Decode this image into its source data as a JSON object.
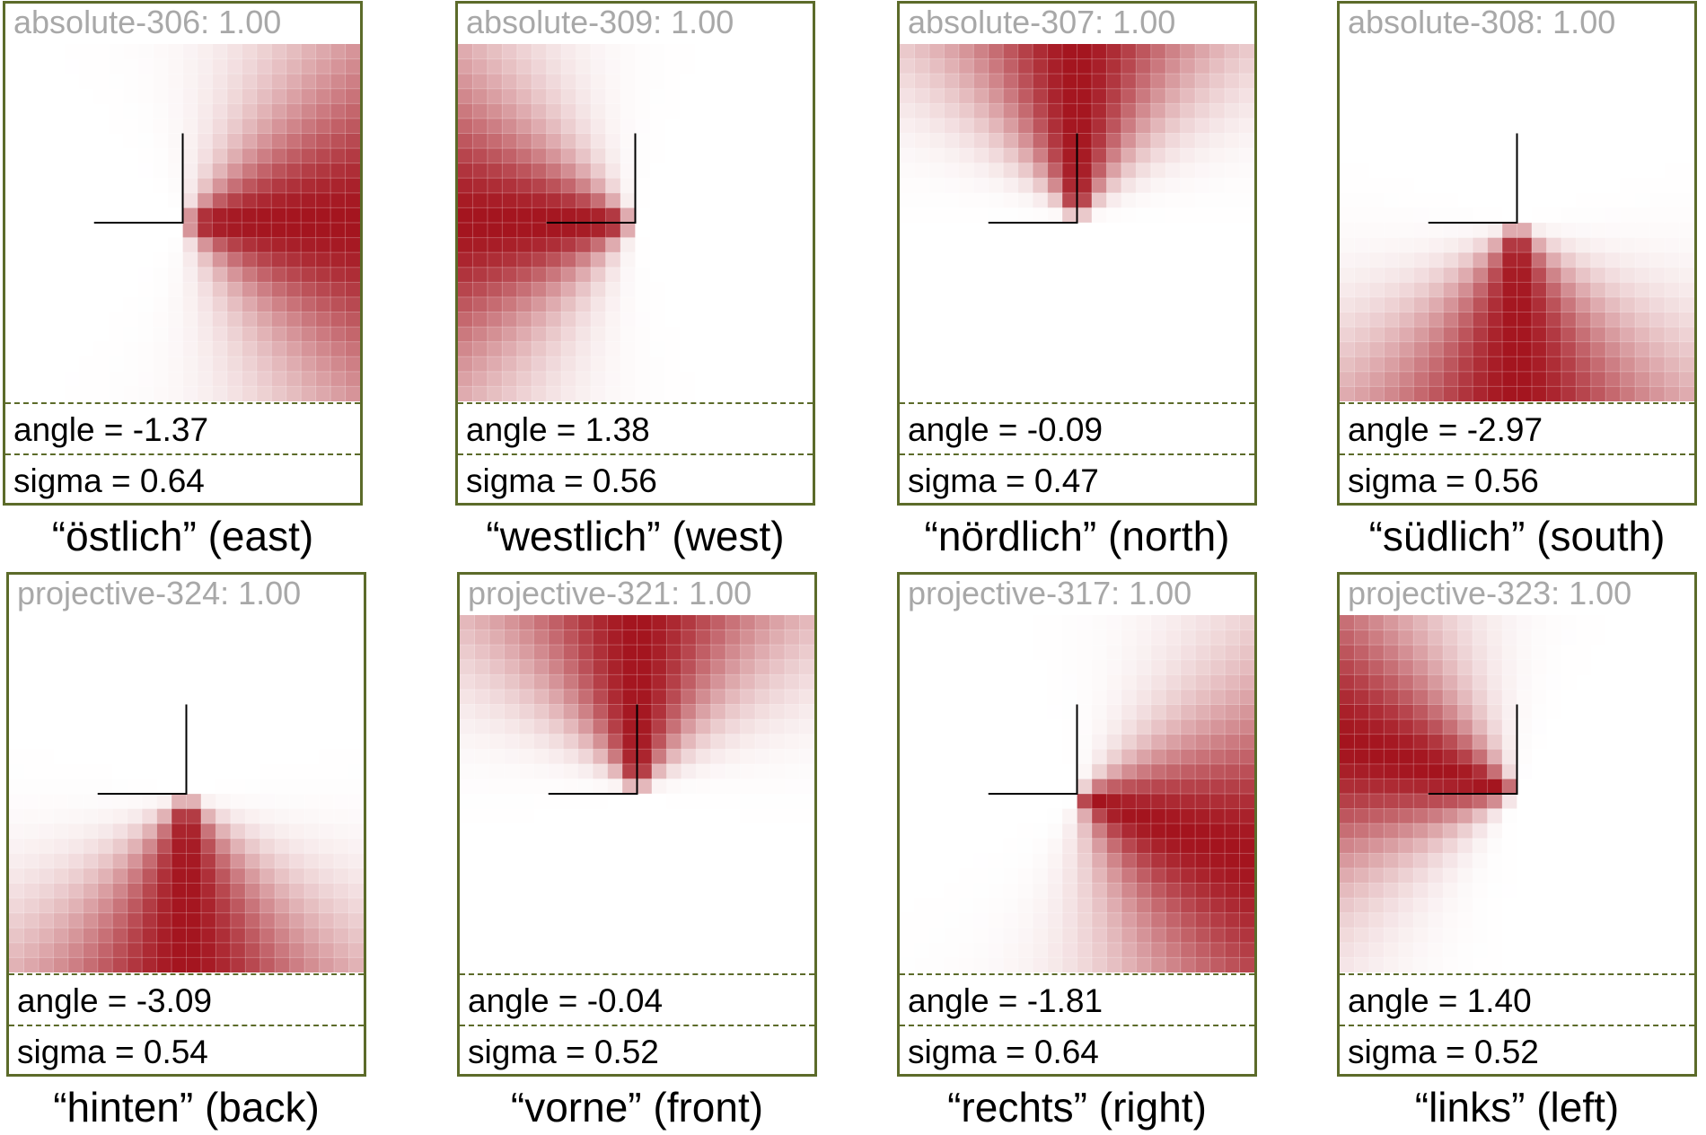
{
  "panels": [
    {
      "title": "absolute-306: 1.00",
      "angle_text": "angle = -1.37",
      "sigma_text": "sigma = 0.64",
      "caption": "“östlich” (east)",
      "angle": -1.37,
      "sigma": 0.64,
      "peak_direction": "right"
    },
    {
      "title": "absolute-309: 1.00",
      "angle_text": "angle = 1.38",
      "sigma_text": "sigma = 0.56",
      "caption": "“westlich” (west)",
      "angle": 1.38,
      "sigma": 0.56,
      "peak_direction": "left"
    },
    {
      "title": "absolute-307: 1.00",
      "angle_text": "angle = -0.09",
      "sigma_text": "sigma = 0.47",
      "caption": "“nördlich” (north)",
      "angle": -0.09,
      "sigma": 0.47,
      "peak_direction": "up"
    },
    {
      "title": "absolute-308: 1.00",
      "angle_text": "angle = -2.97",
      "sigma_text": "sigma = 0.56",
      "caption": "“südlich” (south)",
      "angle": -2.97,
      "sigma": 0.56,
      "peak_direction": "down"
    },
    {
      "title": "projective-324: 1.00",
      "angle_text": "angle = -3.09",
      "sigma_text": "sigma = 0.54",
      "caption": "“hinten” (back)",
      "angle": -3.09,
      "sigma": 0.54,
      "peak_direction": "down"
    },
    {
      "title": "projective-321: 1.00",
      "angle_text": "angle = -0.04",
      "sigma_text": "sigma = 0.52",
      "caption": "“vorne” (front)",
      "angle": -0.04,
      "sigma": 0.52,
      "peak_direction": "up"
    },
    {
      "title": "projective-317: 1.00",
      "angle_text": "angle = -1.81",
      "sigma_text": "sigma = 0.64",
      "caption": "“rechts” (right)",
      "angle": -1.81,
      "sigma": 0.64,
      "peak_direction": "right-down"
    },
    {
      "title": "projective-323: 1.00",
      "angle_text": "angle = 1.40",
      "sigma_text": "sigma = 0.52",
      "caption": "“links” (left)",
      "angle": 1.4,
      "sigma": 0.52,
      "peak_direction": "left-up"
    }
  ],
  "colors": {
    "border": "#5c6b2a",
    "heat_peak": "#a4141e",
    "heat_low": "#ffffff",
    "title_gray": "#a8a8a8"
  }
}
